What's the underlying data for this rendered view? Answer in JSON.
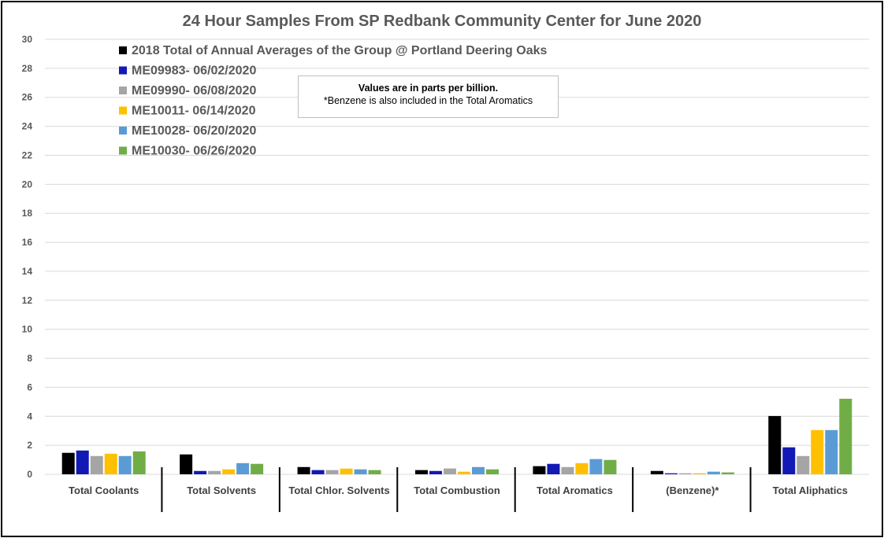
{
  "chart_data": {
    "type": "bar",
    "title": "24 Hour Samples From SP Redbank Community Center for June 2020",
    "xlabel": "",
    "ylabel": "",
    "ylim": [
      0,
      30
    ],
    "yticks": [
      0,
      2,
      4,
      6,
      8,
      10,
      12,
      14,
      16,
      18,
      20,
      22,
      24,
      26,
      28,
      30
    ],
    "grid": true,
    "legend_position": "top-left",
    "categories": [
      "Total Coolants",
      "Total Solvents",
      "Total Chlor. Solvents",
      "Total Combustion",
      "Total Aromatics",
      "(Benzene)*",
      "Total Aliphatics"
    ],
    "series": [
      {
        "name": "2018 Total of Annual Averages of the Group @ Portland Deering Oaks",
        "color": "#000000",
        "values": [
          1.48,
          1.37,
          0.5,
          0.29,
          0.56,
          0.23,
          4.02
        ]
      },
      {
        "name": "ME09983- 06/02/2020",
        "color": "#1219b4",
        "values": [
          1.64,
          0.23,
          0.29,
          0.23,
          0.72,
          0.07,
          1.86
        ]
      },
      {
        "name": "ME09990- 06/08/2020",
        "color": "#a5a5a5",
        "values": [
          1.26,
          0.23,
          0.29,
          0.4,
          0.5,
          0.07,
          1.26
        ]
      },
      {
        "name": "ME10011- 06/14/2020",
        "color": "#ffc000",
        "values": [
          1.42,
          0.34,
          0.39,
          0.18,
          0.77,
          0.07,
          3.05
        ]
      },
      {
        "name": "ME10028- 06/20/2020",
        "color": "#5b9bd5",
        "values": [
          1.26,
          0.77,
          0.34,
          0.5,
          1.05,
          0.18,
          3.05
        ]
      },
      {
        "name": "ME10030- 06/26/2020",
        "color": "#70ad47",
        "values": [
          1.58,
          0.72,
          0.29,
          0.34,
          0.99,
          0.13,
          5.21
        ]
      }
    ],
    "annotation": {
      "line1": "Values are in parts per billion.",
      "line2": "*Benzene is also included in the Total Aromatics"
    }
  }
}
